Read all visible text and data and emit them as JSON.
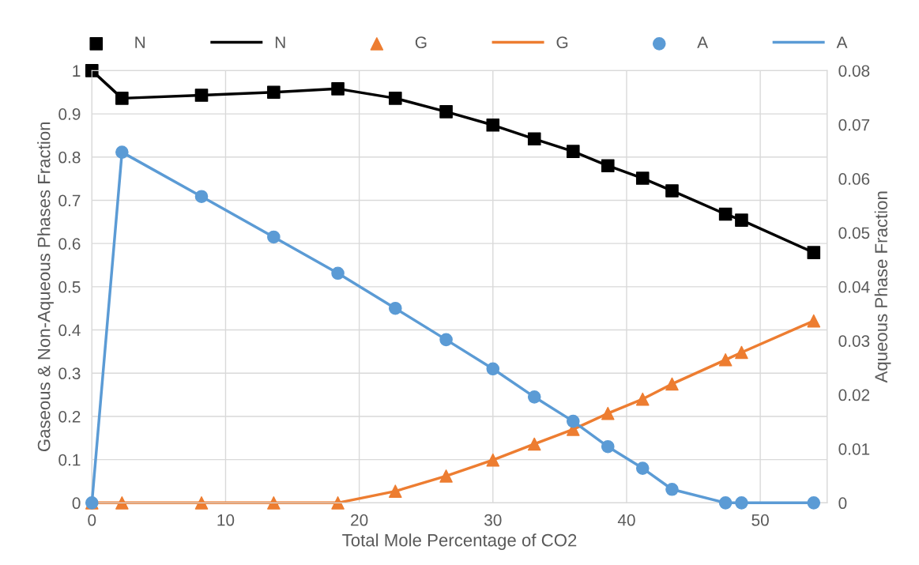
{
  "chart_data": {
    "type": "line",
    "xlabel": "Total Mole Percentage of CO2",
    "ylabel": "Gaseous & Non-Aqueous Phases Fraction",
    "y2label": "Aqueous Phase Fraction",
    "x": [
      0,
      2.25,
      8.2,
      13.6,
      18.4,
      22.7,
      26.5,
      30,
      33.1,
      36,
      38.6,
      41.2,
      43.4,
      47.4,
      48.6,
      54
    ],
    "series": [
      {
        "name": "N",
        "type": "scatter",
        "marker": "square",
        "color": "#000000",
        "values": [
          1.0,
          0.936,
          0.943,
          0.95,
          0.958,
          0.936,
          0.905,
          0.874,
          0.842,
          0.813,
          0.78,
          0.751,
          0.722,
          0.668,
          0.654,
          0.579
        ]
      },
      {
        "name": "N",
        "color": "#000000",
        "values": [
          1.0,
          0.936,
          0.943,
          0.95,
          0.958,
          0.936,
          0.905,
          0.874,
          0.842,
          0.813,
          0.78,
          0.751,
          0.722,
          0.668,
          0.654,
          0.579
        ]
      },
      {
        "name": "G",
        "type": "scatter",
        "marker": "triangle",
        "color": "#ed7d31",
        "values": [
          0,
          0,
          0,
          0,
          0,
          0.027,
          0.062,
          0.099,
          0.136,
          0.17,
          0.207,
          0.24,
          0.275,
          0.331,
          0.348,
          0.421
        ]
      },
      {
        "name": "G",
        "color": "#ed7d31",
        "values": [
          0,
          0,
          0,
          0,
          0,
          0.027,
          0.062,
          0.099,
          0.136,
          0.17,
          0.207,
          0.24,
          0.275,
          0.331,
          0.348,
          0.421
        ]
      },
      {
        "name": "A",
        "type": "scatter",
        "marker": "circle",
        "axis": "y2",
        "color": "#5b9bd5",
        "values": [
          0,
          0.0649,
          0.0567,
          0.0492,
          0.0425,
          0.036,
          0.0302,
          0.0248,
          0.0196,
          0.0151,
          0.0104,
          0.0064,
          0.0025,
          0,
          0,
          0
        ]
      },
      {
        "name": "A",
        "axis": "y2",
        "color": "#5b9bd5",
        "values": [
          0,
          0.0649,
          0.0567,
          0.0492,
          0.0425,
          0.036,
          0.0302,
          0.0248,
          0.0196,
          0.0151,
          0.0104,
          0.0064,
          0.0025,
          0,
          0,
          0
        ]
      }
    ],
    "xlim": [
      0,
      55
    ],
    "xticks": [
      0,
      10,
      20,
      30,
      40,
      50
    ],
    "ylim": [
      0,
      1
    ],
    "yticks": [
      0,
      0.1,
      0.2,
      0.3,
      0.4,
      0.5,
      0.6,
      0.7,
      0.8,
      0.9,
      1
    ],
    "y2lim": [
      0,
      0.08
    ],
    "y2ticks": [
      0,
      0.01,
      0.02,
      0.03,
      0.04,
      0.05,
      0.06,
      0.07,
      0.08
    ],
    "grid": true,
    "legend": "top"
  }
}
